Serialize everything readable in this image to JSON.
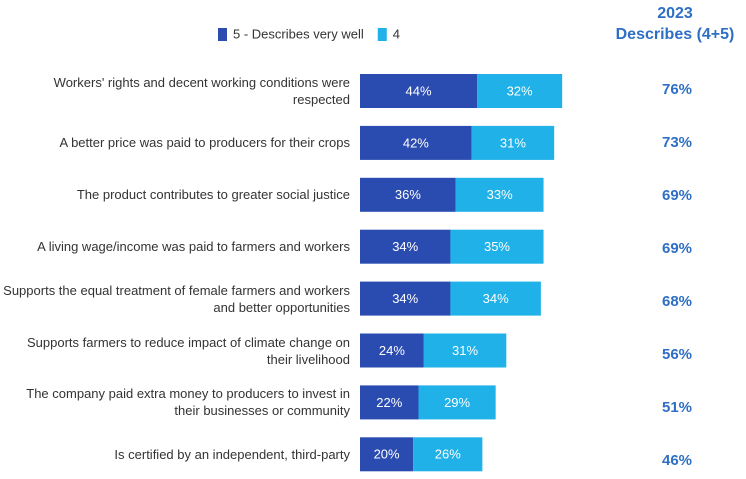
{
  "chart_data": {
    "type": "stacked-bar-horizontal",
    "categories": [
      "Workers' rights and decent working conditions were respected",
      "A better price was paid to producers for their crops",
      "The product contributes to greater social justice",
      "A living wage/income was paid to farmers and workers",
      "Supports the equal treatment of female farmers and workers and better opportunities",
      "Supports farmers to reduce impact of climate change on their livelihood",
      "The company paid extra money to producers to invest in their businesses or community",
      "Is certified by an independent, third-party"
    ],
    "series": [
      {
        "name": "5 - Describes very well",
        "color": "#2a4cb1",
        "values": [
          44,
          42,
          36,
          34,
          34,
          24,
          22,
          20
        ],
        "value_labels": [
          "44%",
          "42%",
          "36%",
          "34%",
          "34%",
          "24%",
          "22%",
          "20%"
        ]
      },
      {
        "name": "4",
        "color": "#1fb1e7",
        "values": [
          32,
          31,
          33,
          35,
          34,
          31,
          29,
          26
        ],
        "value_labels": [
          "32%",
          "31%",
          "33%",
          "35%",
          "34%",
          "31%",
          "29%",
          "26%"
        ]
      }
    ],
    "xlim": [
      0,
      100
    ],
    "totals_header": "2023",
    "totals_subheader": "Describes (4+5)",
    "totals": [
      76,
      73,
      69,
      69,
      68,
      56,
      51,
      46
    ],
    "totals_labels": [
      "76%",
      "73%",
      "69%",
      "69%",
      "68%",
      "56%",
      "51%",
      "46%"
    ]
  }
}
